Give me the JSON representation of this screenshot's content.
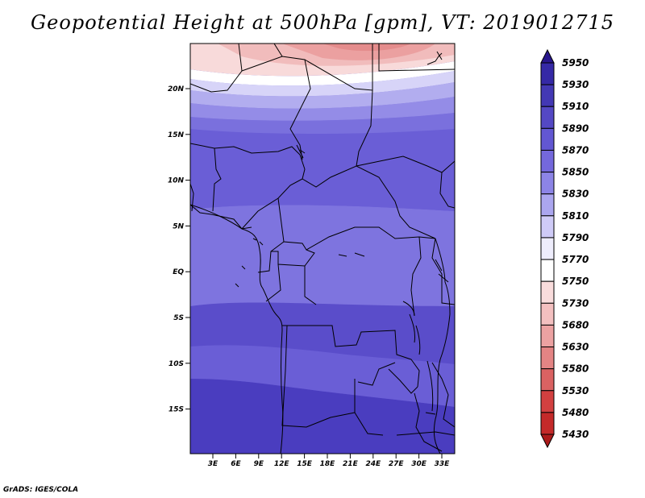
{
  "title": "Geopotential Height at 500hPa [gpm], VT: 2019012715",
  "credit": "GrADS: IGES/COLA",
  "map": {
    "lat_ticks": [
      "20N",
      "15N",
      "10N",
      "5N",
      "EQ",
      "5S",
      "10S",
      "15S"
    ],
    "lon_ticks": [
      "3E",
      "6E",
      "9E",
      "12E",
      "15E",
      "18E",
      "21E",
      "24E",
      "27E",
      "30E",
      "33E"
    ]
  },
  "colorbar": {
    "levels": [
      "5950",
      "5930",
      "5910",
      "5890",
      "5870",
      "5850",
      "5830",
      "5810",
      "5790",
      "5770",
      "5750",
      "5730",
      "5680",
      "5630",
      "5580",
      "5530",
      "5480",
      "5430"
    ],
    "colors": [
      "#28168c",
      "#3529a6",
      "#4338b4",
      "#5448c4",
      "#6257d2",
      "#7468dc",
      "#8c84e6",
      "#aba6ef",
      "#cfcbf7",
      "#eeedfc",
      "#ffffff",
      "#f9dcdc",
      "#f3c0c0",
      "#eca2a2",
      "#e48484",
      "#da6262",
      "#d24040",
      "#c42a2a",
      "#ac1b1b"
    ]
  }
}
